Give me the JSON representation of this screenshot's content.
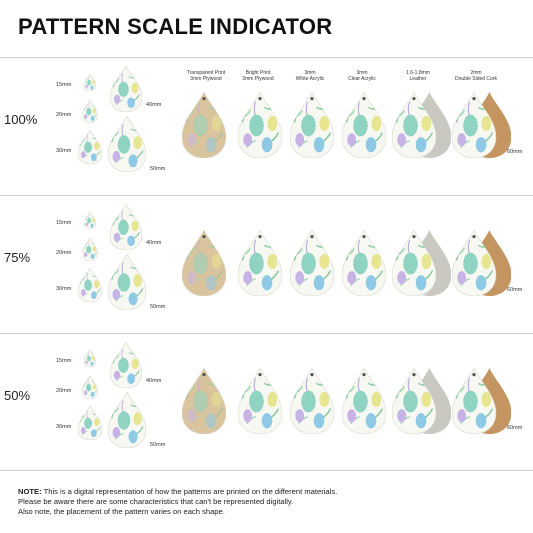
{
  "title": "PATTERN SCALE INDICATOR",
  "materials": [
    {
      "line1": "Transparent Print",
      "line2": "3mm Plywood"
    },
    {
      "line1": "Bright Print",
      "line2": "3mm Plywood"
    },
    {
      "line1": "3mm",
      "line2": "White Acrylic"
    },
    {
      "line1": "3mm",
      "line2": "Clear Acrylic"
    },
    {
      "line1": "1.6-1.8mm",
      "line2": "Leather"
    },
    {
      "line1": "2mm",
      "line2": "Double Sided Cork"
    }
  ],
  "sections": [
    {
      "scale": "100%",
      "sizes": [
        "15mm",
        "20mm",
        "30mm",
        "40mm",
        "50mm"
      ],
      "size_tag": "60mm"
    },
    {
      "scale": "75%",
      "sizes": [
        "15mm",
        "20mm",
        "30mm",
        "40mm",
        "50mm"
      ],
      "size_tag": "60mm"
    },
    {
      "scale": "50%",
      "sizes": [
        "15mm",
        "20mm",
        "30mm",
        "40mm",
        "50mm"
      ],
      "size_tag": "60mm"
    }
  ],
  "note": {
    "label": "NOTE:",
    "line1": " This is a digital representation of how the patterns are printed on the different materials.",
    "line2": "Please be aware there are some characteristics that can't be represented digitally.",
    "line3": "Also note, the placement of the pattern varies on each shape."
  },
  "colors": {
    "plywood": "#d9c49e",
    "white": "#f7f8f2",
    "leather_back": "#c9c9c2",
    "cork_back": "#c49561",
    "egg_green": "#8fd3b6",
    "egg_blue": "#8ec9e6",
    "egg_purple": "#c7b3e6",
    "egg_yellow": "#e7e58f",
    "leaf_green": "#8cc7a0"
  }
}
